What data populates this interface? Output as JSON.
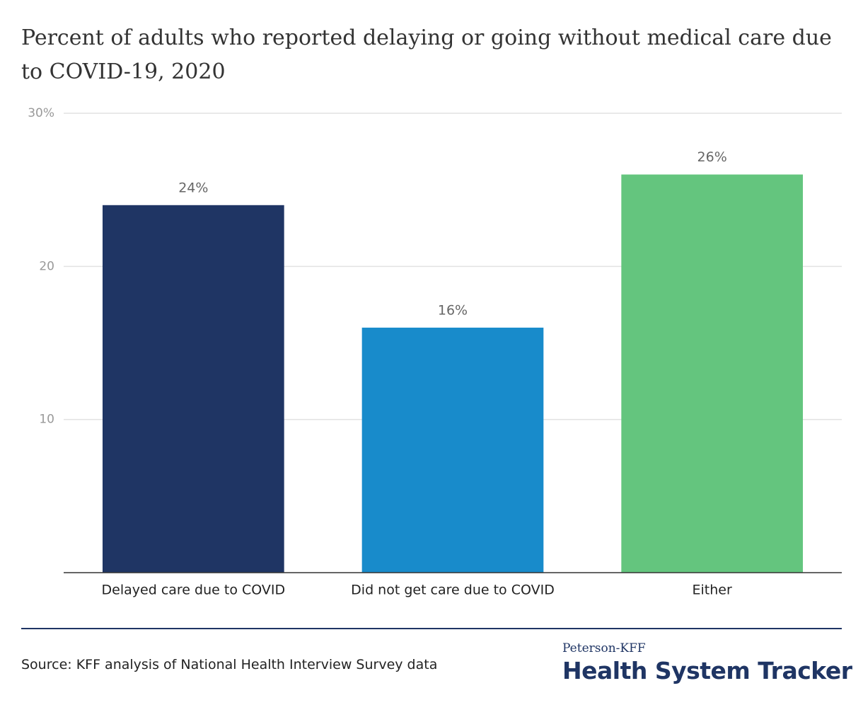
{
  "chart_data": {
    "type": "bar",
    "title": "Percent of adults who reported delaying or going without medical care due to COVID-19, 2020",
    "categories": [
      "Delayed care due to COVID",
      "Did not get care due to COVID",
      "Either"
    ],
    "values": [
      24,
      16,
      26
    ],
    "value_labels": [
      "24%",
      "16%",
      "26%"
    ],
    "colors": [
      "#1f3564",
      "#188bcb",
      "#64c57e"
    ],
    "ylim": [
      0,
      30
    ],
    "yticks": [
      10,
      20,
      {
        "value": 30,
        "label": "30%"
      }
    ],
    "grid": true,
    "source": "Source: KFF analysis of National Health Interview Survey data"
  },
  "logo": {
    "top": "Peterson-KFF",
    "main": "Health System Tracker"
  }
}
